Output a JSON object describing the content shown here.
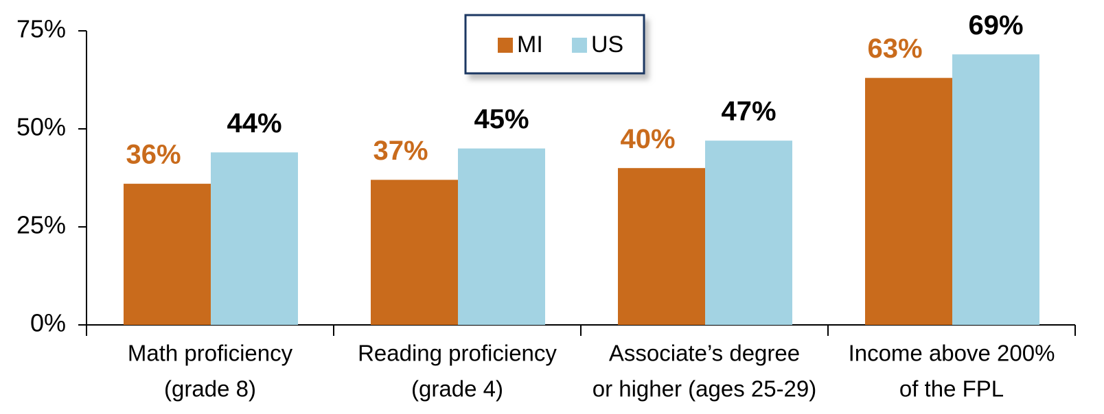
{
  "chart_data": {
    "type": "bar",
    "categories": [
      [
        "Math proficiency",
        "(grade 8)"
      ],
      [
        "Reading proficiency",
        "(grade 4)"
      ],
      [
        "Associate’s degree",
        "or higher (ages 25-29)"
      ],
      [
        "Income above 200%",
        "of the FPL"
      ]
    ],
    "series": [
      {
        "name": "MI",
        "color": "#c96b1c",
        "label_color": "#c96b1c",
        "values": [
          36,
          37,
          40,
          63
        ],
        "value_labels": [
          "36%",
          "37%",
          "40%",
          "63%"
        ]
      },
      {
        "name": "US",
        "color": "#a3d3e3",
        "label_color": "#000000",
        "values": [
          44,
          45,
          47,
          69
        ],
        "value_labels": [
          "44%",
          "45%",
          "47%",
          "69%"
        ]
      }
    ],
    "ylim": [
      0,
      75
    ],
    "yticks": [
      {
        "value": 0,
        "label": "0%"
      },
      {
        "value": 25,
        "label": "25%"
      },
      {
        "value": 50,
        "label": "50%"
      },
      {
        "value": 75,
        "label": "75%"
      }
    ],
    "legend": "top"
  }
}
